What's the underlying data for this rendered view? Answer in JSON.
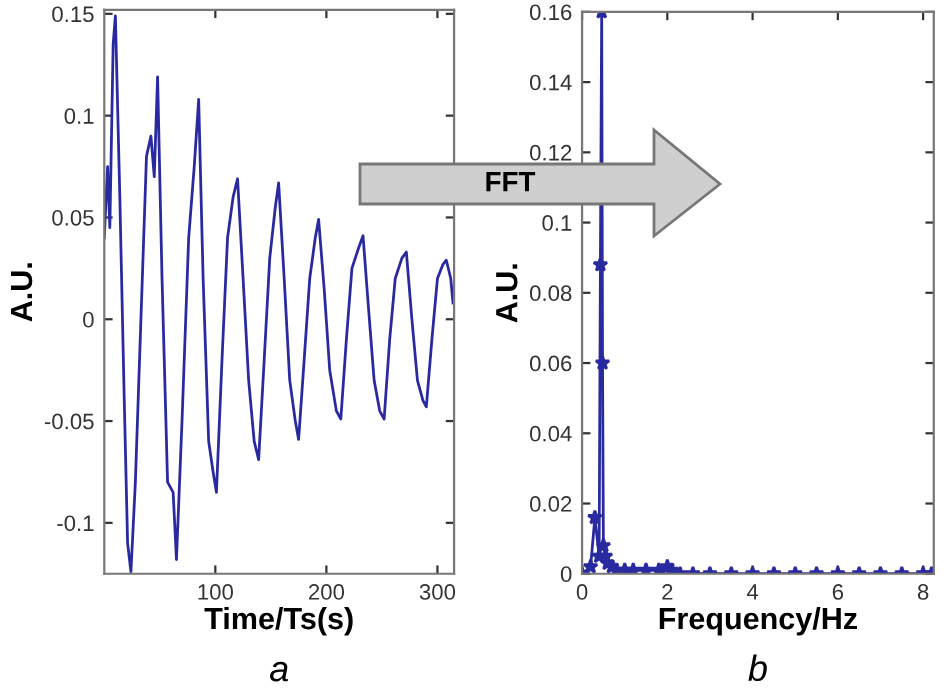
{
  "chart_data": [
    {
      "type": "line",
      "title": "a",
      "xlabel": "Time/Ts(s)",
      "ylabel": "A.U.",
      "series": [
        {
          "color": "#2a2aa0",
          "x": [
            0,
            3,
            5,
            8,
            10,
            14,
            18,
            21,
            24,
            28,
            33,
            38,
            42,
            45,
            48,
            52,
            57,
            62,
            65,
            70,
            76,
            81,
            85,
            89,
            94,
            98,
            101,
            106,
            111,
            116,
            120,
            125,
            130,
            135,
            139,
            144,
            149,
            154,
            157,
            162,
            167,
            172,
            175,
            180,
            185,
            190,
            193,
            198,
            203,
            209,
            213,
            218,
            223,
            229,
            233,
            238,
            243,
            248,
            252,
            257,
            262,
            268,
            272,
            277,
            282,
            287,
            290,
            295,
            300,
            305,
            308,
            312,
            314
          ],
          "values": [
            0.04,
            0.075,
            0.045,
            0.135,
            0.149,
            0.06,
            -0.04,
            -0.11,
            -0.124,
            -0.08,
            0.0,
            0.08,
            0.09,
            0.07,
            0.119,
            0.02,
            -0.08,
            -0.085,
            -0.118,
            -0.05,
            0.04,
            0.075,
            0.108,
            0.02,
            -0.06,
            -0.075,
            -0.085,
            -0.02,
            0.04,
            0.06,
            0.069,
            0.02,
            -0.03,
            -0.06,
            -0.069,
            -0.02,
            0.03,
            0.055,
            0.067,
            0.02,
            -0.03,
            -0.05,
            -0.059,
            -0.02,
            0.02,
            0.04,
            0.049,
            0.015,
            -0.025,
            -0.045,
            -0.049,
            -0.01,
            0.025,
            0.035,
            0.041,
            0.005,
            -0.03,
            -0.045,
            -0.049,
            -0.01,
            0.02,
            0.03,
            0.033,
            0.0,
            -0.03,
            -0.04,
            -0.043,
            -0.01,
            0.02,
            0.027,
            0.029,
            0.02,
            0.008
          ]
        }
      ],
      "xlim": [
        0,
        315
      ],
      "ylim": [
        -0.125,
        0.152
      ],
      "xticks": [
        100,
        200,
        300
      ],
      "yticks": [
        -0.1,
        -0.05,
        0,
        0.05,
        0.1,
        0.15
      ],
      "grid": false,
      "legend": false,
      "marker": "none",
      "line_style": "solid"
    },
    {
      "type": "line",
      "title": "b",
      "xlabel": "Frequency/Hz",
      "ylabel": "A.U.",
      "annotations": [
        "FFT"
      ],
      "series": [
        {
          "color": "#2a2aa0",
          "x": [
            0,
            0.2,
            0.3,
            0.4,
            0.43,
            0.46,
            0.48,
            0.5,
            0.55,
            0.6,
            0.7,
            0.8,
            1.0,
            1.2,
            1.5,
            1.8,
            2.0,
            2.1,
            2.3,
            2.6,
            3.0,
            3.5,
            4.0,
            4.5,
            5.0,
            5.5,
            6.0,
            6.5,
            7.0,
            7.5,
            8.0,
            8.2
          ],
          "values": [
            0.0,
            0.002,
            0.016,
            0.005,
            0.088,
            0.16,
            0.06,
            0.008,
            0.005,
            0.003,
            0.002,
            0.001,
            0.001,
            0.001,
            0.001,
            0.001,
            0.002,
            0.001,
            0.0,
            0.0,
            0.0,
            0.0,
            0.0,
            0.0,
            0.0,
            0.0,
            0.0,
            0.0,
            0.0,
            0.0,
            0.0,
            0.0
          ]
        }
      ],
      "xlim": [
        0,
        8.25
      ],
      "ylim": [
        0,
        0.16
      ],
      "xticks": [
        0,
        2,
        4,
        6,
        8
      ],
      "yticks": [
        0,
        0.02,
        0.04,
        0.06,
        0.08,
        0.1,
        0.12,
        0.14,
        0.16
      ],
      "grid": false,
      "legend": false,
      "marker": "star",
      "line_style": "solid"
    }
  ]
}
